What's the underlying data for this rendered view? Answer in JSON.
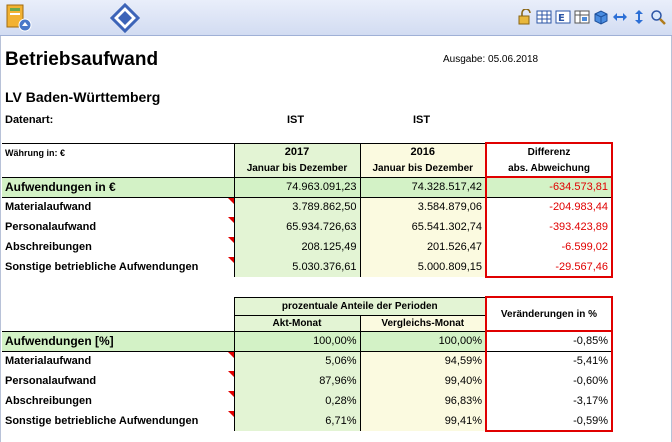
{
  "report": {
    "title": "Betriebsaufwand",
    "ausgabe": "Ausgabe: 05.06.2018",
    "subtitle": "LV Baden-Württemberg",
    "datenart_label": "Datenart:",
    "ist_2017": "IST",
    "ist_2016": "IST"
  },
  "table1": {
    "currency_label": "Währung in: €",
    "col_2017_year": "2017",
    "col_2017_period": "Januar bis Dezember",
    "col_2016_year": "2016",
    "col_2016_period": "Januar bis Dezember",
    "col_diff_title": "Differenz",
    "col_diff_sub": "abs. Abweichung",
    "total": {
      "label": "Aufwendungen in €",
      "v2017": "74.963.091,23",
      "v2016": "74.328.517,42",
      "diff": "-634.573,81"
    },
    "rows": [
      {
        "label": "Materialaufwand",
        "v2017": "3.789.862,50",
        "v2016": "3.584.879,06",
        "diff": "-204.983,44"
      },
      {
        "label": "Personalaufwand",
        "v2017": "65.934.726,63",
        "v2016": "65.541.302,74",
        "diff": "-393.423,89"
      },
      {
        "label": "Abschreibungen",
        "v2017": "208.125,49",
        "v2016": "201.526,47",
        "diff": "-6.599,02"
      },
      {
        "label": "Sonstige betriebliche Aufwendungen",
        "v2017": "5.030.376,61",
        "v2016": "5.000.809,15",
        "diff": "-29.567,46"
      }
    ]
  },
  "table2": {
    "group_header": "prozentuale Anteile der Perioden",
    "col_akt": "Akt-Monat",
    "col_vergleich": "Vergleichs-Monat",
    "col_change": "Veränderungen in %",
    "total": {
      "label": "Aufwendungen [%]",
      "akt": "100,00%",
      "vergleich": "100,00%",
      "change": "-0,85%"
    },
    "rows": [
      {
        "label": "Materialaufwand",
        "akt": "5,06%",
        "vergleich": "94,59%",
        "change": "-5,41%"
      },
      {
        "label": "Personalaufwand",
        "akt": "87,96%",
        "vergleich": "99,40%",
        "change": "-0,60%"
      },
      {
        "label": "Abschreibungen",
        "akt": "0,28%",
        "vergleich": "96,83%",
        "change": "-3,17%"
      },
      {
        "label": "Sonstige betriebliche Aufwendungen",
        "akt": "6,71%",
        "vergleich": "99,41%",
        "change": "-0,59%"
      }
    ]
  },
  "toolbar_icons": [
    "app-document-icon",
    "nav-diamond-icon",
    "lock-icon",
    "table-grid-icon",
    "column-text-icon",
    "table-options-icon",
    "cube-icon",
    "horizontal-arrows-icon",
    "vertical-arrows-icon",
    "zoom-icon"
  ]
}
